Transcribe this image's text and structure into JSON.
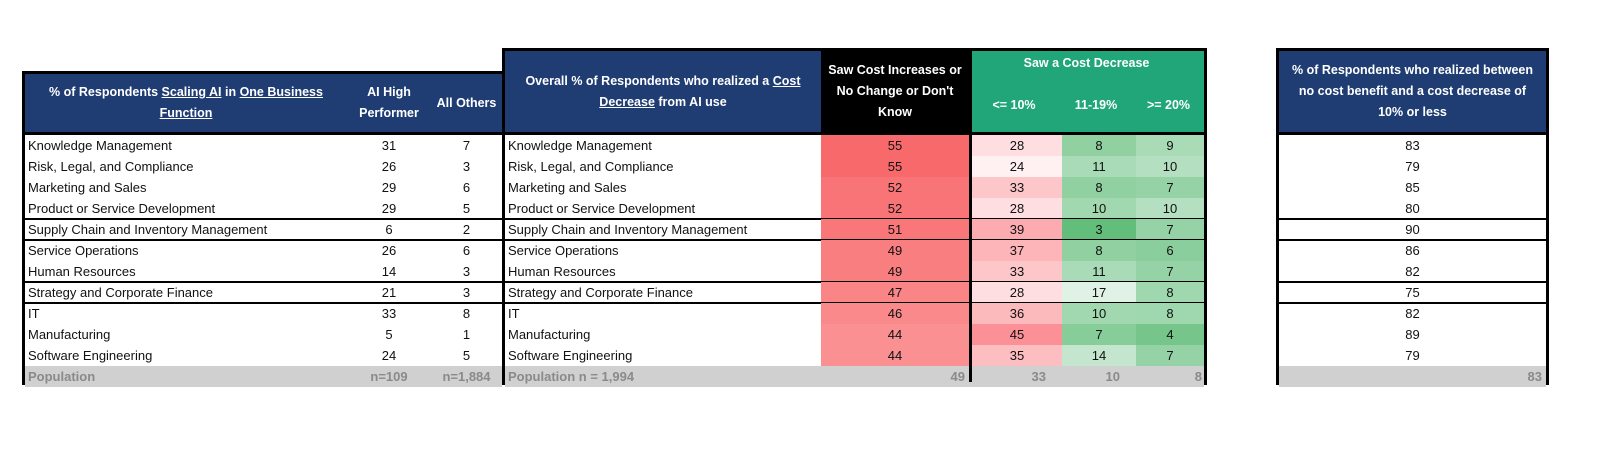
{
  "table1": {
    "header": {
      "title_parts": [
        "% of Respondents ",
        "Scaling AI",
        " in ",
        "One Business Function"
      ],
      "col_high": "AI High Performer",
      "col_others": "All Others"
    },
    "rows": [
      {
        "label": "Knowledge Management",
        "high": "31",
        "others": "7"
      },
      {
        "label": "Risk, Legal, and Compliance",
        "high": "26",
        "others": "3"
      },
      {
        "label": "Marketing and Sales",
        "high": "29",
        "others": "6"
      },
      {
        "label": "Product or Service Development",
        "high": "29",
        "others": "5"
      },
      {
        "label": "Supply Chain and Inventory Management",
        "high": "6",
        "others": "2"
      },
      {
        "label": "Service Operations",
        "high": "26",
        "others": "6"
      },
      {
        "label": "Human Resources",
        "high": "14",
        "others": "3"
      },
      {
        "label": "Strategy and Corporate Finance",
        "high": "21",
        "others": "3"
      },
      {
        "label": "IT",
        "high": "33",
        "others": "8"
      },
      {
        "label": "Manufacturing",
        "high": "5",
        "others": "1"
      },
      {
        "label": "Software Engineering",
        "high": "24",
        "others": "5"
      }
    ],
    "population": {
      "label": "Population",
      "high": "n=109",
      "others": "n=1,884"
    }
  },
  "table2": {
    "header": {
      "title_parts": [
        "Overall % of Respondents who realized a ",
        "Cost Decrease",
        " from AI use"
      ],
      "col_increase": "Saw Cost Increases or No Change or Don't Know",
      "group_decrease": "Saw a Cost Decrease",
      "col_le10": "<= 10%",
      "col_11_19": "11-19%",
      "col_ge20": ">= 20%"
    },
    "rows": [
      {
        "label": "Knowledge Management",
        "increase": 55,
        "le10": 28,
        "mid": 8,
        "ge20": 9
      },
      {
        "label": "Risk, Legal, and Compliance",
        "increase": 55,
        "le10": 24,
        "mid": 11,
        "ge20": 10
      },
      {
        "label": "Marketing and Sales",
        "increase": 52,
        "le10": 33,
        "mid": 8,
        "ge20": 7
      },
      {
        "label": "Product or Service Development",
        "increase": 52,
        "le10": 28,
        "mid": 10,
        "ge20": 10
      },
      {
        "label": "Supply Chain and Inventory Management",
        "increase": 51,
        "le10": 39,
        "mid": 3,
        "ge20": 7
      },
      {
        "label": "Service Operations",
        "increase": 49,
        "le10": 37,
        "mid": 8,
        "ge20": 6
      },
      {
        "label": "Human Resources",
        "increase": 49,
        "le10": 33,
        "mid": 11,
        "ge20": 7
      },
      {
        "label": "Strategy and Corporate Finance",
        "increase": 47,
        "le10": 28,
        "mid": 17,
        "ge20": 8
      },
      {
        "label": "IT",
        "increase": 46,
        "le10": 36,
        "mid": 10,
        "ge20": 8
      },
      {
        "label": "Manufacturing",
        "increase": 44,
        "le10": 45,
        "mid": 7,
        "ge20": 4
      },
      {
        "label": "Software Engineering",
        "increase": 44,
        "le10": 35,
        "mid": 14,
        "ge20": 7
      }
    ],
    "population": {
      "label": "Population n = 1,994",
      "increase": "49",
      "le10": "33",
      "mid": "10",
      "ge20": "8"
    }
  },
  "table3": {
    "header": "% of Respondents who realized between no cost benefit and a cost decrease of 10% or less",
    "rows": [
      "83",
      "79",
      "85",
      "80",
      "90",
      "86",
      "82",
      "75",
      "82",
      "89",
      "79"
    ],
    "population": "83"
  },
  "colors": {
    "navy": "#1f3d73",
    "green_header": "#21a67a",
    "black_header": "#000000",
    "population_bg": "#d0d0d0",
    "red_high": "#f8696b",
    "green_high": "#63be7b"
  }
}
